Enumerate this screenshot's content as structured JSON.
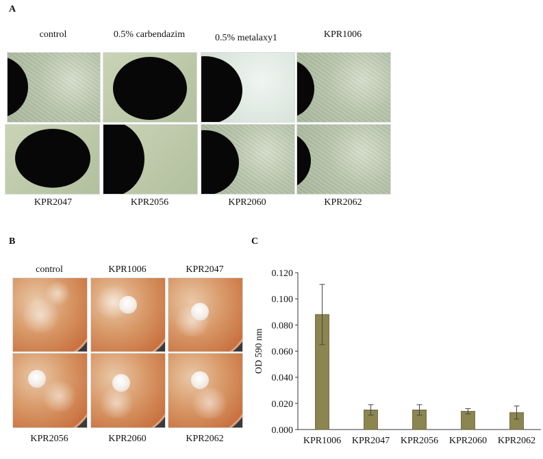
{
  "panel_a": {
    "letter": "A",
    "top_labels": [
      "control",
      "0.5% carbendazim",
      "0.5% metalaxy1",
      "KPR1006"
    ],
    "bottom_labels": [
      "KPR2047",
      "KPR2056",
      "KPR2060",
      "KPR2062"
    ]
  },
  "panel_b": {
    "letter": "B",
    "top_labels": [
      "control",
      "KPR1006",
      "KPR2047"
    ],
    "bottom_labels": [
      "KPR2056",
      "KPR2060",
      "KPR2062"
    ]
  },
  "panel_c": {
    "letter": "C"
  },
  "chart_data": {
    "type": "bar",
    "categories": [
      "KPR1006",
      "KPR2047",
      "KPR2056",
      "KPR2060",
      "KPR2062"
    ],
    "values": [
      0.088,
      0.015,
      0.015,
      0.014,
      0.013
    ],
    "errors": [
      0.023,
      0.004,
      0.004,
      0.002,
      0.005
    ],
    "ylabel": "OD 590 nm",
    "ylim": [
      0,
      0.12
    ],
    "yticks": [
      "0.000",
      "0.020",
      "0.040",
      "0.060",
      "0.080",
      "0.100",
      "0.120"
    ],
    "bar_color": "#8d8550",
    "grid": false
  }
}
